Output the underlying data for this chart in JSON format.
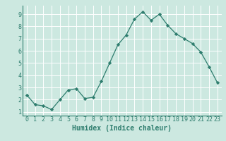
{
  "x": [
    0,
    1,
    2,
    3,
    4,
    5,
    6,
    7,
    8,
    9,
    10,
    11,
    12,
    13,
    14,
    15,
    16,
    17,
    18,
    19,
    20,
    21,
    22,
    23
  ],
  "y": [
    2.4,
    1.6,
    1.5,
    1.2,
    2.0,
    2.8,
    2.9,
    2.1,
    2.2,
    3.5,
    5.0,
    6.5,
    7.3,
    8.6,
    9.2,
    8.5,
    9.0,
    8.1,
    7.4,
    7.0,
    6.6,
    5.9,
    4.7,
    3.4
  ],
  "xlabel": "Humidex (Indice chaleur)",
  "xlim": [
    -0.5,
    23.5
  ],
  "ylim": [
    0.7,
    9.7
  ],
  "yticks": [
    1,
    2,
    3,
    4,
    5,
    6,
    7,
    8,
    9
  ],
  "xticks": [
    0,
    1,
    2,
    3,
    4,
    5,
    6,
    7,
    8,
    9,
    10,
    11,
    12,
    13,
    14,
    15,
    16,
    17,
    18,
    19,
    20,
    21,
    22,
    23
  ],
  "line_color": "#2e7d6e",
  "marker": "D",
  "marker_size": 2.2,
  "bg_color": "#cce8e0",
  "grid_color": "#ffffff",
  "tick_label_color": "#2e7d6e",
  "xlabel_color": "#2e7d6e",
  "label_fontsize": 7.0,
  "tick_fontsize": 6.0
}
